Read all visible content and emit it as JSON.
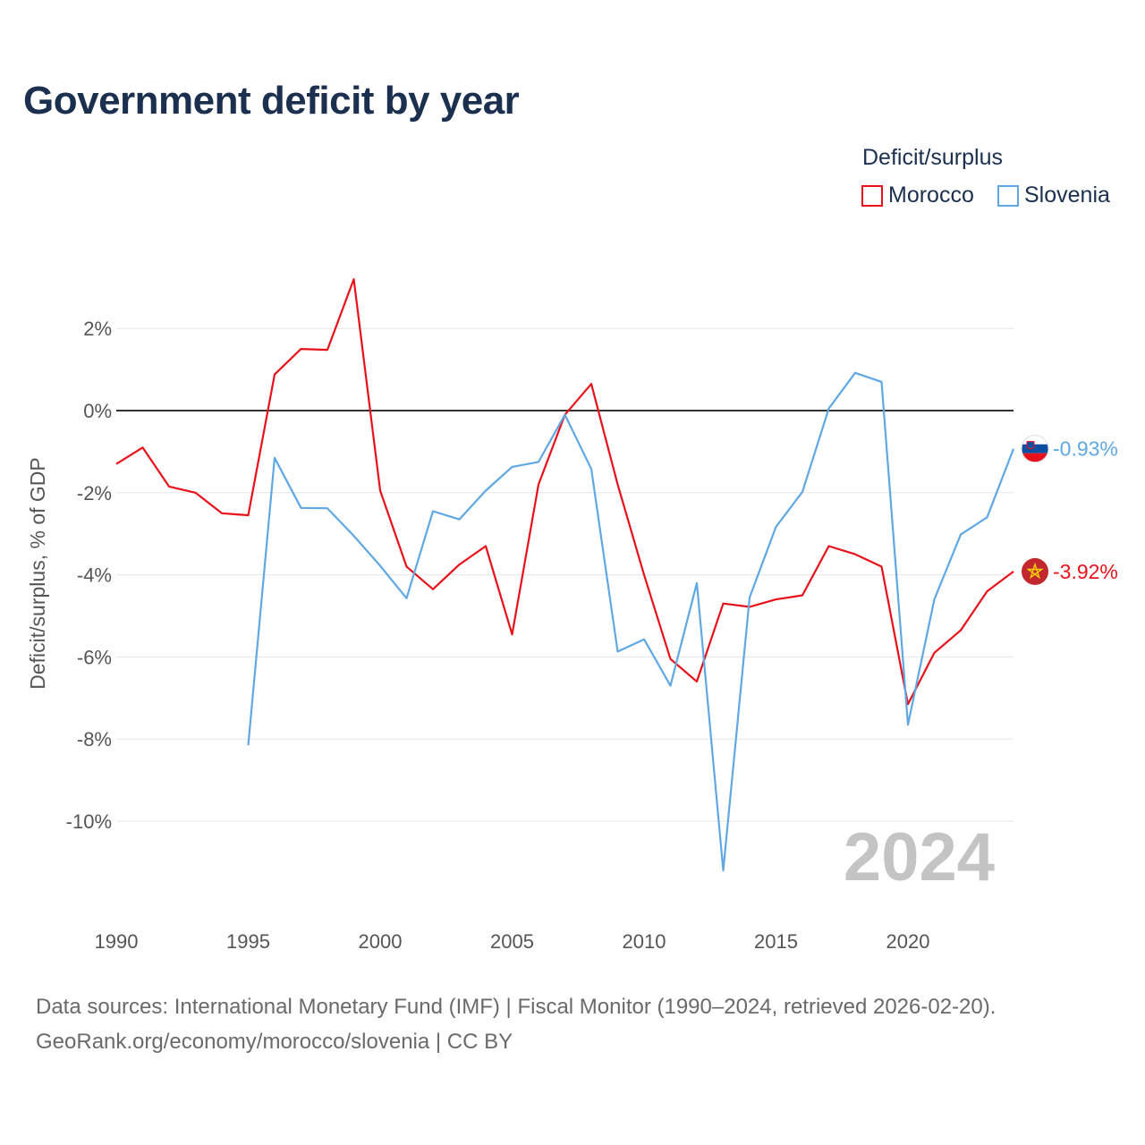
{
  "chart_data": {
    "type": "line",
    "title": "Government deficit by year",
    "ylabel": "Deficit/surplus, % of GDP",
    "xlabel": "",
    "legend_title": "Deficit/surplus",
    "x_ticks": [
      1990,
      1995,
      2000,
      2005,
      2010,
      2015,
      2020
    ],
    "x_tick_labels": [
      "1990",
      "1995",
      "2000",
      "2005",
      "2010",
      "2015",
      "2020"
    ],
    "y_ticks": [
      2,
      0,
      -2,
      -4,
      -6,
      -8,
      -10
    ],
    "y_tick_labels": [
      "2%",
      "0%",
      "-2%",
      "-4%",
      "-6%",
      "-8%",
      "-10%"
    ],
    "xlim": [
      1990,
      2024
    ],
    "ylim": [
      -12.1,
      3.3
    ],
    "year_label": "2024",
    "series": [
      {
        "name": "Morocco",
        "color": "#e8111b",
        "flag": "morocco-flag-icon",
        "end_label": "-3.92%",
        "points": [
          [
            1990,
            -1.3
          ],
          [
            1991,
            -0.9
          ],
          [
            1992,
            -1.85
          ],
          [
            1993,
            -2.0
          ],
          [
            1994,
            -2.5
          ],
          [
            1995,
            -2.55
          ],
          [
            1996,
            0.88
          ],
          [
            1997,
            1.5
          ],
          [
            1998,
            1.48
          ],
          [
            1999,
            3.2
          ],
          [
            2000,
            -1.95
          ],
          [
            2001,
            -3.8
          ],
          [
            2002,
            -4.35
          ],
          [
            2003,
            -3.75
          ],
          [
            2004,
            -3.3
          ],
          [
            2005,
            -5.45
          ],
          [
            2006,
            -1.8
          ],
          [
            2007,
            -0.1
          ],
          [
            2008,
            0.65
          ],
          [
            2009,
            -1.8
          ],
          [
            2010,
            -4.0
          ],
          [
            2011,
            -6.05
          ],
          [
            2012,
            -6.6
          ],
          [
            2013,
            -4.7
          ],
          [
            2014,
            -4.78
          ],
          [
            2015,
            -4.6
          ],
          [
            2016,
            -4.5
          ],
          [
            2017,
            -3.3
          ],
          [
            2018,
            -3.5
          ],
          [
            2019,
            -3.8
          ],
          [
            2020,
            -7.15
          ],
          [
            2021,
            -5.9
          ],
          [
            2022,
            -5.35
          ],
          [
            2023,
            -4.4
          ],
          [
            2024,
            -3.92
          ]
        ]
      },
      {
        "name": "Slovenia",
        "color": "#5fa8e4",
        "flag": "slovenia-flag-icon",
        "end_label": "-0.93%",
        "points": [
          [
            1995,
            -8.15
          ],
          [
            1996,
            -1.15
          ],
          [
            1997,
            -2.37
          ],
          [
            1998,
            -2.38
          ],
          [
            1999,
            -3.05
          ],
          [
            2000,
            -3.78
          ],
          [
            2001,
            -4.57
          ],
          [
            2002,
            -2.45
          ],
          [
            2003,
            -2.65
          ],
          [
            2004,
            -1.95
          ],
          [
            2005,
            -1.37
          ],
          [
            2006,
            -1.25
          ],
          [
            2007,
            -0.1
          ],
          [
            2008,
            -1.42
          ],
          [
            2009,
            -5.87
          ],
          [
            2010,
            -5.57
          ],
          [
            2011,
            -6.7
          ],
          [
            2012,
            -4.2
          ],
          [
            2013,
            -11.2
          ],
          [
            2014,
            -4.55
          ],
          [
            2015,
            -2.83
          ],
          [
            2016,
            -1.98
          ],
          [
            2017,
            0.05
          ],
          [
            2018,
            0.92
          ],
          [
            2019,
            0.7
          ],
          [
            2020,
            -7.65
          ],
          [
            2021,
            -4.6
          ],
          [
            2022,
            -3.02
          ],
          [
            2023,
            -2.6
          ],
          [
            2024,
            -0.93
          ]
        ]
      }
    ]
  },
  "footer": {
    "source": "Data sources: International Monetary Fund (IMF) | Fiscal Monitor (1990–2024, retrieved 2026-02-20).",
    "credit": "GeoRank.org/economy/morocco/slovenia | CC BY"
  }
}
